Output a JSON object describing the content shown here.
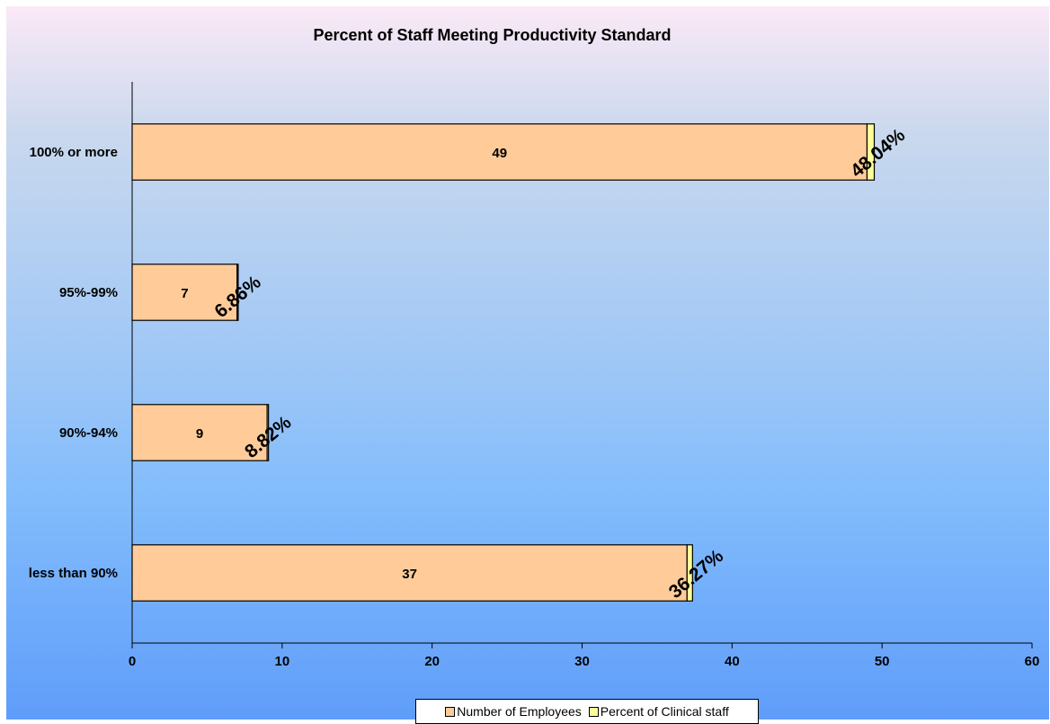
{
  "chart_data": {
    "type": "bar",
    "orientation": "horizontal",
    "stacked": true,
    "title": "Percent of Staff Meeting Productivity Standard",
    "categories": [
      "100% or more",
      "95%-99%",
      "90%-94%",
      "less than 90%"
    ],
    "series": [
      {
        "name": "Number of Employees",
        "values": [
          49,
          7,
          9,
          37
        ],
        "labels": [
          "49",
          "7",
          "9",
          "37"
        ],
        "color": "#ffcc99"
      },
      {
        "name": "Percent of Clinical staff",
        "values": [
          0.4804,
          0.0686,
          0.0882,
          0.3627
        ],
        "labels": [
          "48.04%",
          "6.86%",
          "8.82%",
          "36.27%"
        ],
        "color": "#ffff99"
      }
    ],
    "xlim": [
      0,
      60
    ],
    "xticks": [
      0,
      10,
      20,
      30,
      40,
      50,
      60
    ],
    "grid": false,
    "legend_position": "bottom"
  }
}
